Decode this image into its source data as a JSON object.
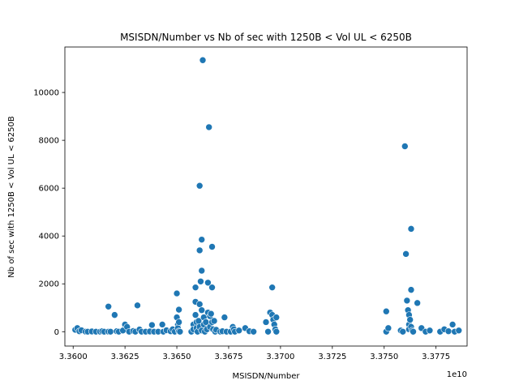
{
  "chart_data": {
    "type": "scatter",
    "title": "MSISDN/Number vs Nb of sec with 1250B < Vol UL < 6250B",
    "xlabel": "MSISDN/Number",
    "ylabel": "Nb of sec with 1250B < Vol UL < 6250B",
    "x_offset_label": "1e10",
    "x_scale": 10000000000,
    "xlim": [
      33596000000,
      33790000000
    ],
    "ylim": [
      -600,
      11900
    ],
    "x_ticks": [
      33600000000,
      33625000000,
      33650000000,
      33675000000,
      33700000000,
      33725000000,
      33750000000,
      33775000000
    ],
    "x_tick_labels": [
      "3.3600",
      "3.3625",
      "3.3650",
      "3.3675",
      "3.3700",
      "3.3725",
      "3.3750",
      "3.3775"
    ],
    "y_ticks": [
      0,
      2000,
      4000,
      6000,
      8000,
      10000
    ],
    "y_tick_labels": [
      "0",
      "2000",
      "4000",
      "6000",
      "8000",
      "10000"
    ],
    "grid": false,
    "colors": {
      "points": "#1f77b4",
      "axes": "#000000",
      "background": "#ffffff"
    },
    "points": [
      {
        "x": 33601000000,
        "y": 80
      },
      {
        "x": 33602000000,
        "y": 150
      },
      {
        "x": 33603000000,
        "y": 20
      },
      {
        "x": 33604000000,
        "y": 60
      },
      {
        "x": 33606000000,
        "y": 0
      },
      {
        "x": 33607000000,
        "y": 0
      },
      {
        "x": 33609000000,
        "y": 10
      },
      {
        "x": 33611000000,
        "y": 0
      },
      {
        "x": 33613000000,
        "y": 0
      },
      {
        "x": 33614000000,
        "y": 20
      },
      {
        "x": 33615000000,
        "y": 0
      },
      {
        "x": 33617000000,
        "y": 0
      },
      {
        "x": 33617000000,
        "y": 1050
      },
      {
        "x": 33618000000,
        "y": 0
      },
      {
        "x": 33620000000,
        "y": 700
      },
      {
        "x": 33621000000,
        "y": 20
      },
      {
        "x": 33622000000,
        "y": 0
      },
      {
        "x": 33624000000,
        "y": 50
      },
      {
        "x": 33625000000,
        "y": 300
      },
      {
        "x": 33626000000,
        "y": 200
      },
      {
        "x": 33627000000,
        "y": 0
      },
      {
        "x": 33629000000,
        "y": 30
      },
      {
        "x": 33630000000,
        "y": 0
      },
      {
        "x": 33631000000,
        "y": 1100
      },
      {
        "x": 33632000000,
        "y": 90
      },
      {
        "x": 33633000000,
        "y": 0
      },
      {
        "x": 33635000000,
        "y": 0
      },
      {
        "x": 33637000000,
        "y": 10
      },
      {
        "x": 33638000000,
        "y": 280
      },
      {
        "x": 33639000000,
        "y": 0
      },
      {
        "x": 33641000000,
        "y": 0
      },
      {
        "x": 33643000000,
        "y": 300
      },
      {
        "x": 33643500000,
        "y": 0
      },
      {
        "x": 33645000000,
        "y": 60
      },
      {
        "x": 33647000000,
        "y": 20
      },
      {
        "x": 33648000000,
        "y": 100
      },
      {
        "x": 33649000000,
        "y": 0
      },
      {
        "x": 33650000000,
        "y": 1600
      },
      {
        "x": 33650000000,
        "y": 600
      },
      {
        "x": 33650500000,
        "y": 300
      },
      {
        "x": 33650500000,
        "y": 150
      },
      {
        "x": 33651000000,
        "y": 920
      },
      {
        "x": 33651000000,
        "y": 400
      },
      {
        "x": 33651000000,
        "y": 20
      },
      {
        "x": 33651500000,
        "y": 0
      },
      {
        "x": 33657000000,
        "y": 0
      },
      {
        "x": 33658000000,
        "y": 300
      },
      {
        "x": 33658000000,
        "y": 100
      },
      {
        "x": 33659000000,
        "y": 1850
      },
      {
        "x": 33659000000,
        "y": 1250
      },
      {
        "x": 33659000000,
        "y": 700
      },
      {
        "x": 33659500000,
        "y": 400
      },
      {
        "x": 33659500000,
        "y": 150
      },
      {
        "x": 33660000000,
        "y": 0
      },
      {
        "x": 33660500000,
        "y": 450
      },
      {
        "x": 33661000000,
        "y": 6100
      },
      {
        "x": 33661000000,
        "y": 3400
      },
      {
        "x": 33661000000,
        "y": 1150
      },
      {
        "x": 33661000000,
        "y": 200
      },
      {
        "x": 33661500000,
        "y": 2100
      },
      {
        "x": 33662000000,
        "y": 3850
      },
      {
        "x": 33662000000,
        "y": 2550
      },
      {
        "x": 33662000000,
        "y": 900
      },
      {
        "x": 33662000000,
        "y": 50
      },
      {
        "x": 33662500000,
        "y": 11350
      },
      {
        "x": 33663000000,
        "y": 600
      },
      {
        "x": 33663000000,
        "y": 300
      },
      {
        "x": 33663500000,
        "y": 0
      },
      {
        "x": 33664000000,
        "y": 400
      },
      {
        "x": 33664500000,
        "y": 100
      },
      {
        "x": 33665000000,
        "y": 2050
      },
      {
        "x": 33665000000,
        "y": 800
      },
      {
        "x": 33665500000,
        "y": 8550
      },
      {
        "x": 33666000000,
        "y": 650
      },
      {
        "x": 33666000000,
        "y": 200
      },
      {
        "x": 33666500000,
        "y": 750
      },
      {
        "x": 33667000000,
        "y": 3550
      },
      {
        "x": 33667000000,
        "y": 1850
      },
      {
        "x": 33667000000,
        "y": 400
      },
      {
        "x": 33667500000,
        "y": 100
      },
      {
        "x": 33668000000,
        "y": 450
      },
      {
        "x": 33668500000,
        "y": 0
      },
      {
        "x": 33669000000,
        "y": 80
      },
      {
        "x": 33671000000,
        "y": 0
      },
      {
        "x": 33672000000,
        "y": 20
      },
      {
        "x": 33673000000,
        "y": 600
      },
      {
        "x": 33674000000,
        "y": 0
      },
      {
        "x": 33676000000,
        "y": 0
      },
      {
        "x": 33677000000,
        "y": 200
      },
      {
        "x": 33677500000,
        "y": 100
      },
      {
        "x": 33678000000,
        "y": 0
      },
      {
        "x": 33680000000,
        "y": 50
      },
      {
        "x": 33683000000,
        "y": 150
      },
      {
        "x": 33685000000,
        "y": 20
      },
      {
        "x": 33687000000,
        "y": 0
      },
      {
        "x": 33693000000,
        "y": 400
      },
      {
        "x": 33694000000,
        "y": 0
      },
      {
        "x": 33695000000,
        "y": 800
      },
      {
        "x": 33696000000,
        "y": 1850
      },
      {
        "x": 33696000000,
        "y": 700
      },
      {
        "x": 33696500000,
        "y": 500
      },
      {
        "x": 33697000000,
        "y": 300
      },
      {
        "x": 33697500000,
        "y": 100
      },
      {
        "x": 33698000000,
        "y": 0
      },
      {
        "x": 33698000000,
        "y": 600
      },
      {
        "x": 33751000000,
        "y": 850
      },
      {
        "x": 33751000000,
        "y": 0
      },
      {
        "x": 33752000000,
        "y": 150
      },
      {
        "x": 33758000000,
        "y": 50
      },
      {
        "x": 33759000000,
        "y": 0
      },
      {
        "x": 33760000000,
        "y": 7750
      },
      {
        "x": 33760500000,
        "y": 3250
      },
      {
        "x": 33761000000,
        "y": 1300
      },
      {
        "x": 33761500000,
        "y": 900
      },
      {
        "x": 33762000000,
        "y": 700
      },
      {
        "x": 33762000000,
        "y": 300
      },
      {
        "x": 33762000000,
        "y": 100
      },
      {
        "x": 33762500000,
        "y": 500
      },
      {
        "x": 33763000000,
        "y": 4300
      },
      {
        "x": 33763000000,
        "y": 1750
      },
      {
        "x": 33763000000,
        "y": 200
      },
      {
        "x": 33763500000,
        "y": 50
      },
      {
        "x": 33764000000,
        "y": 0
      },
      {
        "x": 33766000000,
        "y": 1200
      },
      {
        "x": 33768000000,
        "y": 150
      },
      {
        "x": 33770000000,
        "y": 0
      },
      {
        "x": 33772000000,
        "y": 50
      },
      {
        "x": 33777000000,
        "y": 0
      },
      {
        "x": 33779000000,
        "y": 100
      },
      {
        "x": 33781000000,
        "y": 20
      },
      {
        "x": 33783000000,
        "y": 300
      },
      {
        "x": 33784000000,
        "y": 0
      },
      {
        "x": 33786000000,
        "y": 50
      }
    ]
  }
}
